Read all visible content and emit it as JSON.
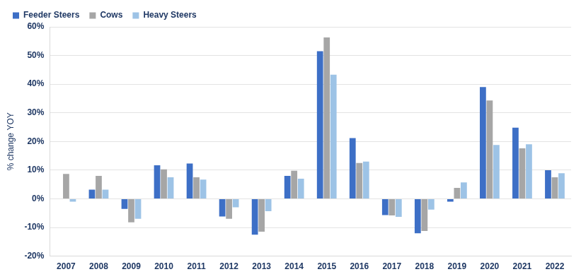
{
  "chart_data": {
    "type": "bar",
    "y_label": "% change YOY",
    "categories": [
      "2007",
      "2008",
      "2009",
      "2010",
      "2011",
      "2012",
      "2013",
      "2014",
      "2015",
      "2016",
      "2017",
      "2018",
      "2019",
      "2020",
      "2021",
      "2022"
    ],
    "series": [
      {
        "name": "Feeder Steers",
        "color": "#3d6fc6",
        "values": [
          null,
          3.2,
          -3.5,
          11.7,
          12.3,
          -6.2,
          -12.5,
          8.0,
          51.5,
          21.2,
          -5.7,
          -12.0,
          -1.0,
          39.0,
          24.8,
          10.0
        ]
      },
      {
        "name": "Cows",
        "color": "#a6a6a6",
        "values": [
          8.7,
          8.0,
          -8.2,
          10.3,
          7.5,
          -7.0,
          -11.5,
          9.8,
          56.3,
          12.5,
          -5.8,
          -11.2,
          3.8,
          34.3,
          17.6,
          7.5
        ]
      },
      {
        "name": "Heavy Steers",
        "color": "#9dc3e6",
        "values": [
          -1.0,
          3.2,
          -7.0,
          7.5,
          6.7,
          -3.0,
          -4.3,
          7.0,
          43.3,
          13.0,
          -6.3,
          -3.8,
          5.7,
          18.8,
          19.0,
          8.9
        ]
      }
    ],
    "ylim": [
      -20,
      60
    ],
    "yticks": [
      {
        "value": -20,
        "label": "-20%"
      },
      {
        "value": -10,
        "label": "-10%"
      },
      {
        "value": 0,
        "label": "0%"
      },
      {
        "value": 10,
        "label": "10%"
      },
      {
        "value": 20,
        "label": "20%"
      },
      {
        "value": 30,
        "label": "30%"
      },
      {
        "value": 40,
        "label": "40%"
      },
      {
        "value": 50,
        "label": "50%"
      },
      {
        "value": 60,
        "label": "60%"
      }
    ],
    "grid": true,
    "legend": "upper left"
  }
}
